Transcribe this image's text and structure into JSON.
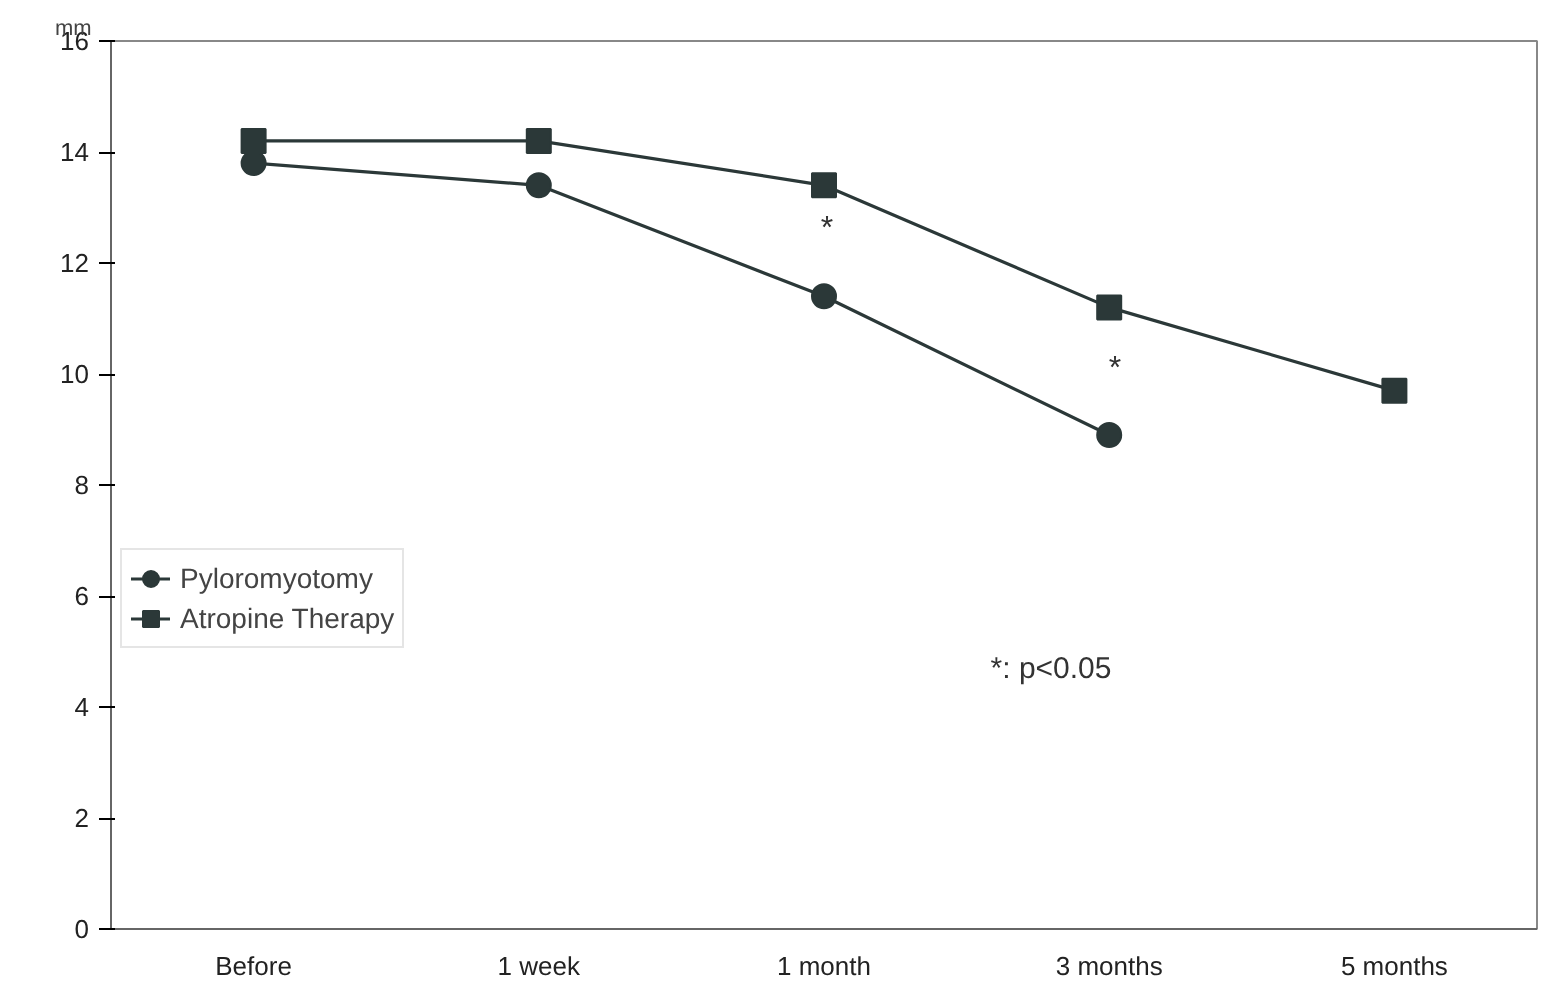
{
  "chart_data": {
    "type": "line",
    "ylabel": "mm",
    "categories": [
      "Before",
      "1 week",
      "1 month",
      "3 months",
      "5 months"
    ],
    "series": [
      {
        "name": "Pyloromyotomy",
        "color": "#2b3838",
        "marker": "circle",
        "values": [
          13.8,
          13.4,
          11.4,
          8.9,
          null
        ]
      },
      {
        "name": "Atropine Therapy",
        "color": "#2b3838",
        "marker": "square",
        "values": [
          14.2,
          14.2,
          13.4,
          11.2,
          9.7
        ]
      }
    ],
    "ylim": [
      0,
      16
    ],
    "yticks": [
      0,
      2,
      4,
      6,
      8,
      10,
      12,
      14,
      16
    ],
    "grid": false,
    "legend": "left",
    "line_style": "solid",
    "annotations": [
      "*",
      "*",
      "*: p<0.05"
    ]
  }
}
